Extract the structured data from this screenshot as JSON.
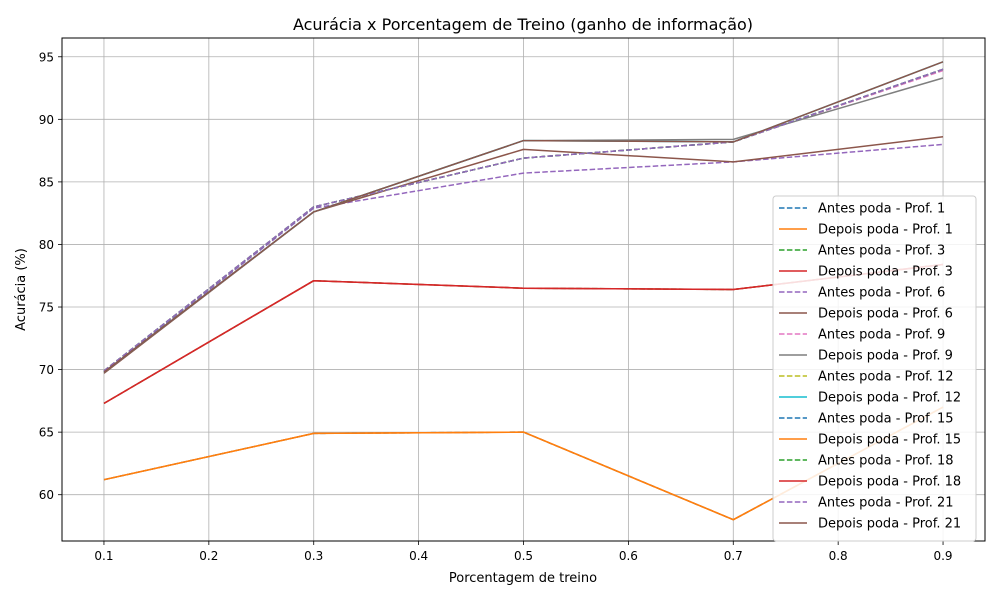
{
  "chart_data": {
    "type": "line",
    "title": "Acurácia x Porcentagem de Treino (ganho de informação)",
    "xlabel": "Porcentagem de treino",
    "ylabel": "Acurácia (%)",
    "xlim": [
      0.06,
      0.94
    ],
    "ylim": [
      56.3,
      96.5
    ],
    "xticks": [
      0.1,
      0.2,
      0.3,
      0.4,
      0.5,
      0.6,
      0.7,
      0.8,
      0.9
    ],
    "xtick_labels": [
      "0.1",
      "0.2",
      "0.3",
      "0.4",
      "0.5",
      "0.6",
      "0.7",
      "0.8",
      "0.9"
    ],
    "yticks": [
      60,
      65,
      70,
      75,
      80,
      85,
      90,
      95
    ],
    "ytick_labels": [
      "60",
      "65",
      "70",
      "75",
      "80",
      "85",
      "90",
      "95"
    ],
    "grid": true,
    "legend_position": "lower right",
    "x": [
      0.1,
      0.3,
      0.5,
      0.7,
      0.9
    ],
    "series": [
      {
        "name": "Antes poda - Prof. 1",
        "color": "#1f77b4",
        "dashed": true,
        "values": [
          61.2,
          64.9,
          65.0,
          58.0,
          67.0
        ]
      },
      {
        "name": "Depois poda - Prof. 1",
        "color": "#ff7f0e",
        "dashed": false,
        "values": [
          61.2,
          64.9,
          65.0,
          58.0,
          67.0
        ]
      },
      {
        "name": "Antes poda - Prof. 3",
        "color": "#2ca02c",
        "dashed": true,
        "values": [
          67.3,
          77.1,
          76.5,
          76.4,
          78.4
        ]
      },
      {
        "name": "Depois poda - Prof. 3",
        "color": "#d62728",
        "dashed": false,
        "values": [
          67.3,
          77.1,
          76.5,
          76.4,
          78.4
        ]
      },
      {
        "name": "Antes poda - Prof. 6",
        "color": "#9467bd",
        "dashed": true,
        "values": [
          69.8,
          82.9,
          85.7,
          86.6,
          88.0
        ]
      },
      {
        "name": "Depois poda - Prof. 6",
        "color": "#8c564b",
        "dashed": false,
        "values": [
          69.7,
          82.6,
          87.6,
          86.6,
          88.6
        ]
      },
      {
        "name": "Antes poda - Prof. 9",
        "color": "#e377c2",
        "dashed": true,
        "values": [
          69.9,
          83.0,
          86.9,
          88.2,
          93.9
        ]
      },
      {
        "name": "Depois poda - Prof. 9",
        "color": "#7f7f7f",
        "dashed": false,
        "values": [
          69.8,
          82.6,
          88.3,
          88.4,
          93.3
        ]
      },
      {
        "name": "Antes poda - Prof. 12",
        "color": "#bcbd22",
        "dashed": true,
        "values": [
          69.9,
          83.0,
          86.9,
          88.2,
          94.0
        ]
      },
      {
        "name": "Depois poda - Prof. 12",
        "color": "#17becf",
        "dashed": false,
        "values": [
          69.8,
          82.6,
          88.3,
          88.2,
          94.6
        ]
      },
      {
        "name": "Antes poda - Prof. 15",
        "color": "#1f77b4",
        "dashed": true,
        "values": [
          69.9,
          83.0,
          86.9,
          88.2,
          94.0
        ]
      },
      {
        "name": "Depois poda - Prof. 15",
        "color": "#ff7f0e",
        "dashed": false,
        "values": [
          61.2,
          64.9,
          65.0,
          58.0,
          67.0
        ]
      },
      {
        "name": "Antes poda - Prof. 18",
        "color": "#2ca02c",
        "dashed": true,
        "values": [
          69.9,
          83.0,
          86.9,
          88.2,
          94.0
        ]
      },
      {
        "name": "Depois poda - Prof. 18",
        "color": "#d62728",
        "dashed": false,
        "values": [
          67.3,
          77.1,
          76.5,
          76.4,
          78.4
        ]
      },
      {
        "name": "Antes poda - Prof. 21",
        "color": "#9467bd",
        "dashed": true,
        "values": [
          69.9,
          83.0,
          86.9,
          88.2,
          94.0
        ]
      },
      {
        "name": "Depois poda - Prof. 21",
        "color": "#8c564b",
        "dashed": false,
        "values": [
          69.8,
          82.6,
          88.3,
          88.2,
          94.6
        ]
      }
    ]
  }
}
